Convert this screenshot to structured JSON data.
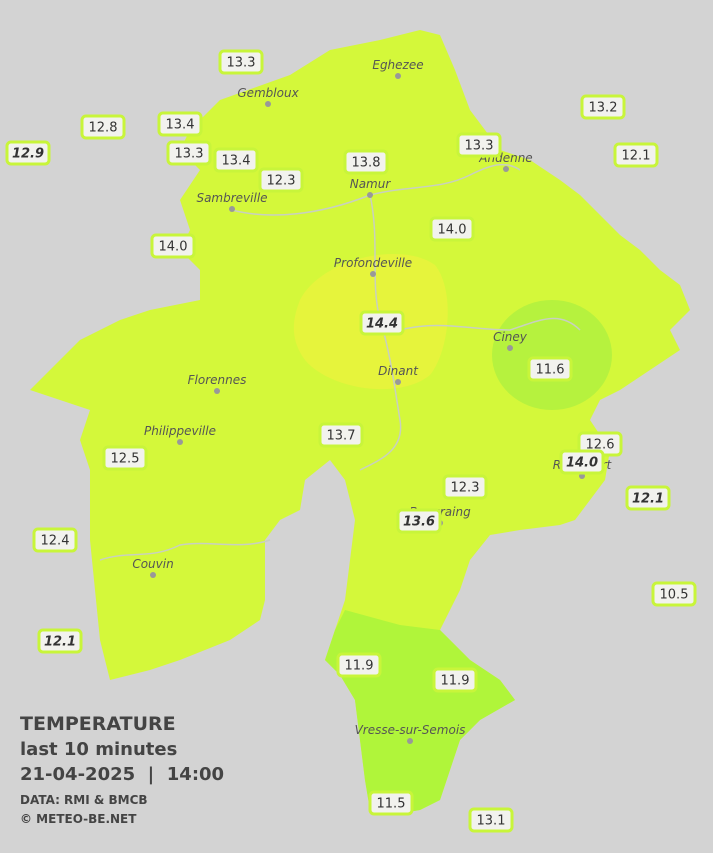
{
  "legend": {
    "title": "TEMPERATURE",
    "period": "last 10 minutes",
    "datetime": "21-04-2025  |  14:00",
    "source": "DATA: RMI & BMCB",
    "copyright": "© METEO-BE.NET"
  },
  "cities": [
    "Eghezee",
    "Gembloux",
    "Andenne",
    "Namur",
    "Sambreville",
    "Profondeville",
    "Ciney",
    "Dinant",
    "Florennes",
    "Philippeville",
    "Rochefort",
    "Beauraing",
    "Couvin",
    "Vresse-sur-Semois"
  ],
  "stations": [
    {
      "value": "13.3",
      "italic": false
    },
    {
      "value": "12.8",
      "italic": false
    },
    {
      "value": "12.9",
      "italic": true
    },
    {
      "value": "13.4",
      "italic": false
    },
    {
      "value": "13.3",
      "italic": false
    },
    {
      "value": "13.4",
      "italic": false
    },
    {
      "value": "12.3",
      "italic": false
    },
    {
      "value": "13.8",
      "italic": false
    },
    {
      "value": "13.3",
      "italic": false
    },
    {
      "value": "13.2",
      "italic": false
    },
    {
      "value": "12.1",
      "italic": false
    },
    {
      "value": "14.0",
      "italic": false
    },
    {
      "value": "14.0",
      "italic": false
    },
    {
      "value": "14.4",
      "italic": true
    },
    {
      "value": "11.6",
      "italic": false
    },
    {
      "value": "13.7",
      "italic": false
    },
    {
      "value": "12.6",
      "italic": false
    },
    {
      "value": "14.0",
      "italic": true
    },
    {
      "value": "12.5",
      "italic": false
    },
    {
      "value": "12.3",
      "italic": false
    },
    {
      "value": "13.6",
      "italic": true
    },
    {
      "value": "12.1",
      "italic": true
    },
    {
      "value": "12.4",
      "italic": false
    },
    {
      "value": "10.5",
      "italic": false
    },
    {
      "value": "12.1",
      "italic": true
    },
    {
      "value": "11.9",
      "italic": false
    },
    {
      "value": "11.9",
      "italic": false
    },
    {
      "value": "11.5",
      "italic": false
    },
    {
      "value": "13.1",
      "italic": false
    }
  ]
}
